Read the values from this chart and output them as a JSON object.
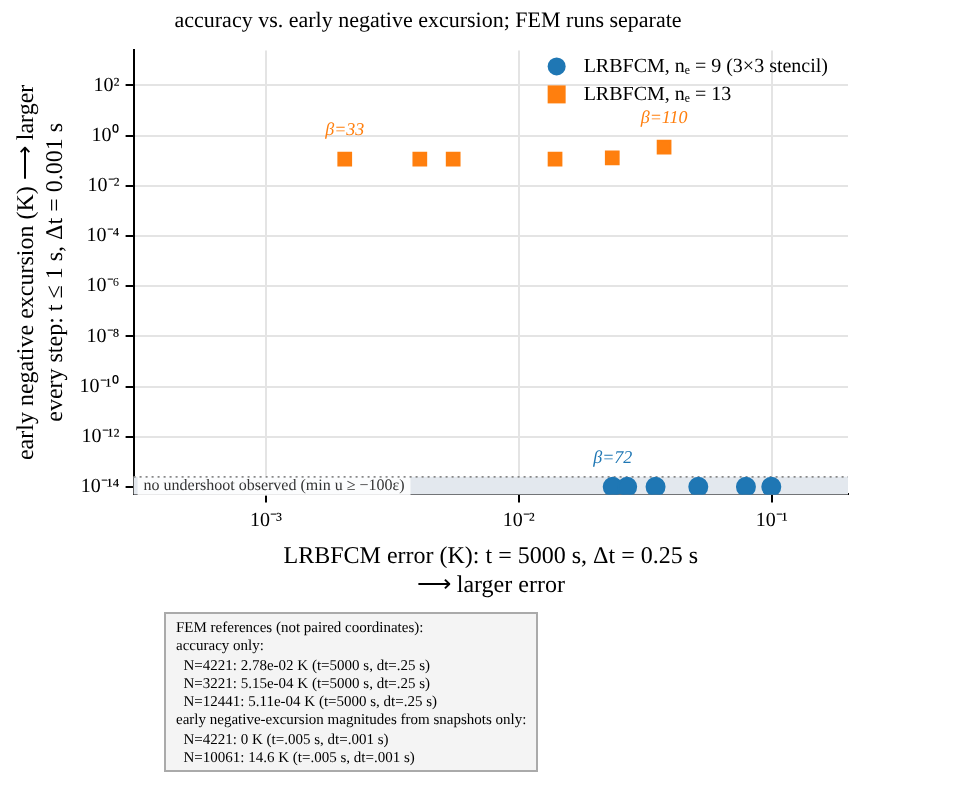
{
  "chart_data": {
    "type": "scatter",
    "title": "accuracy vs. early negative excursion; FEM runs separate",
    "xlabel": "LRBFCM error (K): t = 5000 s, Δt = 0.25 s\n⟶ larger error",
    "ylabel": "early negative excursion (K) ⟶ larger\nevery step: t ≤ 1 s, Δt = 0.001 s",
    "log": "xy",
    "grid": true,
    "legend": "top right",
    "xlim": [
      0.0003,
      0.2
    ],
    "xticks": [
      {
        "value": 0.001,
        "label": "10⁻³"
      },
      {
        "value": 0.01,
        "label": "10⁻²"
      },
      {
        "value": 0.1,
        "label": "10⁻¹"
      }
    ],
    "ylim": [
      5e-15,
      2500
    ],
    "yticks": [
      {
        "value": 1e-14,
        "label": "10⁻¹⁴"
      },
      {
        "value": 1e-12,
        "label": "10⁻¹²"
      },
      {
        "value": 1e-10,
        "label": "10⁻¹⁰"
      },
      {
        "value": 1e-08,
        "label": "10⁻⁸"
      },
      {
        "value": 1e-06,
        "label": "10⁻⁶"
      },
      {
        "value": 0.0001,
        "label": "10⁻⁴"
      },
      {
        "value": 0.01,
        "label": "10⁻²"
      },
      {
        "value": 1,
        "label": "10⁰"
      },
      {
        "value": 100,
        "label": "10²"
      }
    ],
    "series": [
      {
        "name": "LRBFCM, nₑ = 9 (3×3 stencil)",
        "color": "#1f77b4",
        "marker": "circle",
        "x": [
          0.0235,
          0.0268,
          0.0347,
          0.0512,
          0.079,
          0.0995
        ],
        "values": [
          1e-14,
          1e-14,
          1e-14,
          1e-14,
          1e-14,
          1e-14
        ]
      },
      {
        "name": "LRBFCM, nₑ = 13",
        "color": "#ff7f0e",
        "marker": "square",
        "x": [
          0.00205,
          0.00406,
          0.0055,
          0.0139,
          0.0234,
          0.0375
        ],
        "values": [
          0.115,
          0.115,
          0.115,
          0.115,
          0.13,
          0.35
        ]
      }
    ],
    "bands": [
      {
        "axis": "y",
        "from": 5e-15,
        "to": 2.5e-14,
        "label": "no undershoot observed (min u ≥ −100ε)",
        "color": "#e3e8ee"
      }
    ],
    "ref_lines": [
      {
        "axis": "y",
        "value": 2.5e-14,
        "color": "#888888",
        "line_style": "dotted"
      }
    ],
    "annotations": [
      {
        "text": "β=33",
        "x": 0.00205,
        "y": 0.115
      },
      {
        "text": "β=110",
        "x": 0.0375,
        "y": 0.35
      },
      {
        "text": "β=72",
        "x": 0.0235,
        "y": 1e-14
      },
      "FEM references (not paired coordinates):",
      "accuracy only:",
      "  N=4221: 2.78e-02 K (t=5000 s, dt=.25 s)",
      "  N=3221: 5.15e-04 K (t=5000 s, dt=.25 s)",
      "  N=12441: 5.11e-04 K (t=5000 s, dt=.25 s)",
      "early negative-excursion magnitudes from snapshots only:",
      "  N=4221: 0 K (t=.005 s, dt=.001 s)",
      "  N=10061: 14.6 K (t=.005 s, dt=.001 s)"
    ]
  }
}
